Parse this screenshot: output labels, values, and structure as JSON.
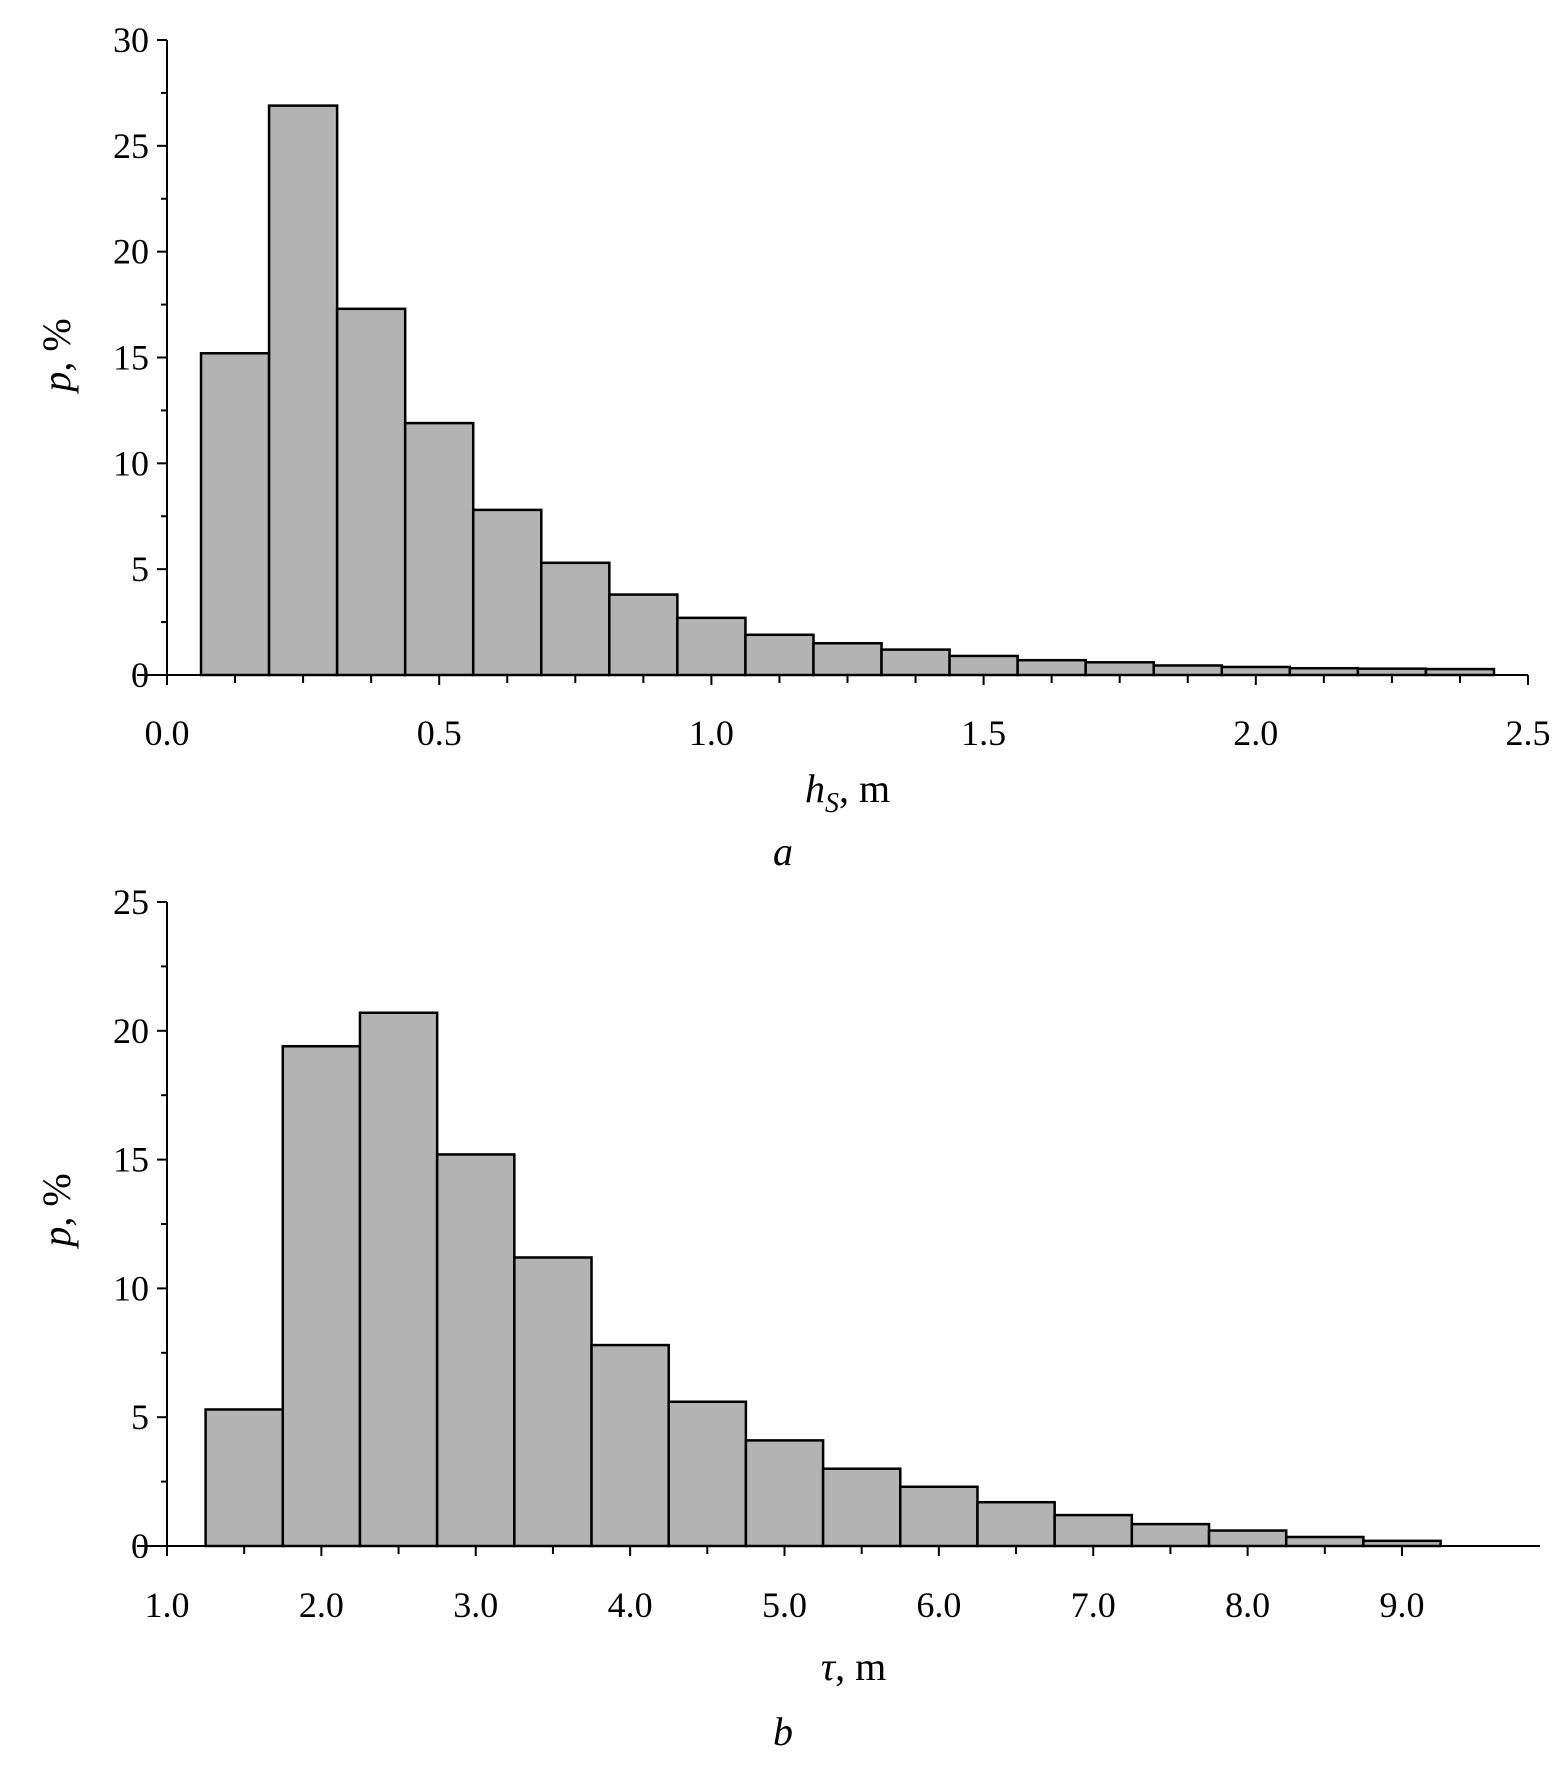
{
  "chart_data": [
    {
      "type": "bar",
      "panel_label": "a",
      "xlabel": {
        "var": "h",
        "sub": "S",
        "rest": ", m"
      },
      "ylabel": {
        "var": "p",
        "rest": ", %"
      },
      "xlim": [
        0.0,
        2.5
      ],
      "ylim": [
        0,
        30
      ],
      "xticks": [
        "0.0",
        "0.5",
        "1.0",
        "1.5",
        "2.0",
        "2.5"
      ],
      "yticks": [
        "0",
        "5",
        "10",
        "15",
        "20",
        "25",
        "30"
      ],
      "bin_edges": [
        0.0625,
        0.1875,
        0.3125,
        0.4375,
        0.5625,
        0.6875,
        0.8125,
        0.9375,
        1.0625,
        1.1875,
        1.3125,
        1.4375,
        1.5625,
        1.6875,
        1.8125,
        1.9375,
        2.0625,
        2.1875,
        2.3125,
        2.4375
      ],
      "values": [
        15.2,
        26.9,
        17.3,
        11.9,
        7.8,
        5.3,
        3.8,
        2.7,
        1.9,
        1.5,
        1.2,
        0.9,
        0.7,
        0.6,
        0.45,
        0.38,
        0.32,
        0.3,
        0.28
      ],
      "bar_color": "#b3b3b3",
      "grid": false
    },
    {
      "type": "bar",
      "panel_label": "b",
      "xlabel": {
        "var": "τ",
        "rest": ", m"
      },
      "ylabel": {
        "var": "p",
        "rest": ", %"
      },
      "xlim": [
        1.0,
        9.0
      ],
      "ylim": [
        0,
        25
      ],
      "xticks": [
        "1.0",
        "2.0",
        "3.0",
        "4.0",
        "5.0",
        "6.0",
        "7.0",
        "8.0",
        "9.0"
      ],
      "yticks": [
        "0",
        "5",
        "10",
        "15",
        "20",
        "25"
      ],
      "bin_edges": [
        1.25,
        1.75,
        2.25,
        2.75,
        3.25,
        3.75,
        4.25,
        4.75,
        5.25,
        5.75,
        6.25,
        6.75,
        7.25,
        7.75,
        8.25,
        8.75,
        9.25
      ],
      "values": [
        5.3,
        19.4,
        20.7,
        15.2,
        11.2,
        7.8,
        5.6,
        4.1,
        3.0,
        2.3,
        1.7,
        1.2,
        0.85,
        0.6,
        0.35,
        0.2
      ],
      "bar_color": "#b3b3b3",
      "grid": false
    }
  ]
}
